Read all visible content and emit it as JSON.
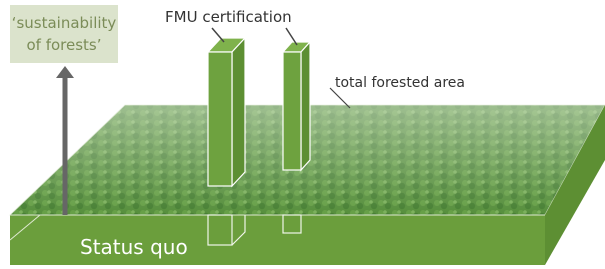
{
  "sustainability_label": {
    "lines": [
      "‘sustainability",
      "of forests’"
    ]
  },
  "fmu_label": "FMU certification",
  "area_label": "total forested area",
  "status_label": "Status quo"
}
